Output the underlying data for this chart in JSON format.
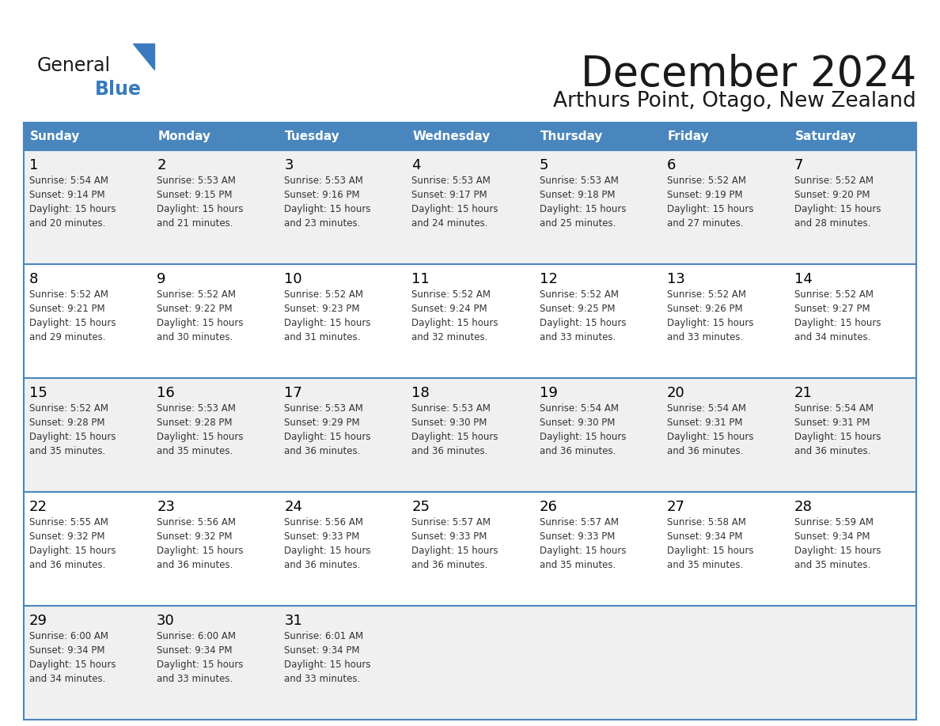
{
  "title": "December 2024",
  "subtitle": "Arthurs Point, Otago, New Zealand",
  "header_bg": "#4a86be",
  "header_text_color": "#ffffff",
  "cell_bg_odd": "#f0f0f0",
  "cell_bg_even": "#ffffff",
  "cell_bg_last": "#f0f0f0",
  "day_number_color": "#000000",
  "cell_text_color": "#333333",
  "border_color": "#4a86be",
  "border_color_row": "#4a86be",
  "days_of_week": [
    "Sunday",
    "Monday",
    "Tuesday",
    "Wednesday",
    "Thursday",
    "Friday",
    "Saturday"
  ],
  "weeks": [
    [
      {
        "day": 1,
        "sunrise": "5:54 AM",
        "sunset": "9:14 PM",
        "daylight_line1": "15 hours",
        "daylight_line2": "and 20 minutes."
      },
      {
        "day": 2,
        "sunrise": "5:53 AM",
        "sunset": "9:15 PM",
        "daylight_line1": "15 hours",
        "daylight_line2": "and 21 minutes."
      },
      {
        "day": 3,
        "sunrise": "5:53 AM",
        "sunset": "9:16 PM",
        "daylight_line1": "15 hours",
        "daylight_line2": "and 23 minutes."
      },
      {
        "day": 4,
        "sunrise": "5:53 AM",
        "sunset": "9:17 PM",
        "daylight_line1": "15 hours",
        "daylight_line2": "and 24 minutes."
      },
      {
        "day": 5,
        "sunrise": "5:53 AM",
        "sunset": "9:18 PM",
        "daylight_line1": "15 hours",
        "daylight_line2": "and 25 minutes."
      },
      {
        "day": 6,
        "sunrise": "5:52 AM",
        "sunset": "9:19 PM",
        "daylight_line1": "15 hours",
        "daylight_line2": "and 27 minutes."
      },
      {
        "day": 7,
        "sunrise": "5:52 AM",
        "sunset": "9:20 PM",
        "daylight_line1": "15 hours",
        "daylight_line2": "and 28 minutes."
      }
    ],
    [
      {
        "day": 8,
        "sunrise": "5:52 AM",
        "sunset": "9:21 PM",
        "daylight_line1": "15 hours",
        "daylight_line2": "and 29 minutes."
      },
      {
        "day": 9,
        "sunrise": "5:52 AM",
        "sunset": "9:22 PM",
        "daylight_line1": "15 hours",
        "daylight_line2": "and 30 minutes."
      },
      {
        "day": 10,
        "sunrise": "5:52 AM",
        "sunset": "9:23 PM",
        "daylight_line1": "15 hours",
        "daylight_line2": "and 31 minutes."
      },
      {
        "day": 11,
        "sunrise": "5:52 AM",
        "sunset": "9:24 PM",
        "daylight_line1": "15 hours",
        "daylight_line2": "and 32 minutes."
      },
      {
        "day": 12,
        "sunrise": "5:52 AM",
        "sunset": "9:25 PM",
        "daylight_line1": "15 hours",
        "daylight_line2": "and 33 minutes."
      },
      {
        "day": 13,
        "sunrise": "5:52 AM",
        "sunset": "9:26 PM",
        "daylight_line1": "15 hours",
        "daylight_line2": "and 33 minutes."
      },
      {
        "day": 14,
        "sunrise": "5:52 AM",
        "sunset": "9:27 PM",
        "daylight_line1": "15 hours",
        "daylight_line2": "and 34 minutes."
      }
    ],
    [
      {
        "day": 15,
        "sunrise": "5:52 AM",
        "sunset": "9:28 PM",
        "daylight_line1": "15 hours",
        "daylight_line2": "and 35 minutes."
      },
      {
        "day": 16,
        "sunrise": "5:53 AM",
        "sunset": "9:28 PM",
        "daylight_line1": "15 hours",
        "daylight_line2": "and 35 minutes."
      },
      {
        "day": 17,
        "sunrise": "5:53 AM",
        "sunset": "9:29 PM",
        "daylight_line1": "15 hours",
        "daylight_line2": "and 36 minutes."
      },
      {
        "day": 18,
        "sunrise": "5:53 AM",
        "sunset": "9:30 PM",
        "daylight_line1": "15 hours",
        "daylight_line2": "and 36 minutes."
      },
      {
        "day": 19,
        "sunrise": "5:54 AM",
        "sunset": "9:30 PM",
        "daylight_line1": "15 hours",
        "daylight_line2": "and 36 minutes."
      },
      {
        "day": 20,
        "sunrise": "5:54 AM",
        "sunset": "9:31 PM",
        "daylight_line1": "15 hours",
        "daylight_line2": "and 36 minutes."
      },
      {
        "day": 21,
        "sunrise": "5:54 AM",
        "sunset": "9:31 PM",
        "daylight_line1": "15 hours",
        "daylight_line2": "and 36 minutes."
      }
    ],
    [
      {
        "day": 22,
        "sunrise": "5:55 AM",
        "sunset": "9:32 PM",
        "daylight_line1": "15 hours",
        "daylight_line2": "and 36 minutes."
      },
      {
        "day": 23,
        "sunrise": "5:56 AM",
        "sunset": "9:32 PM",
        "daylight_line1": "15 hours",
        "daylight_line2": "and 36 minutes."
      },
      {
        "day": 24,
        "sunrise": "5:56 AM",
        "sunset": "9:33 PM",
        "daylight_line1": "15 hours",
        "daylight_line2": "and 36 minutes."
      },
      {
        "day": 25,
        "sunrise": "5:57 AM",
        "sunset": "9:33 PM",
        "daylight_line1": "15 hours",
        "daylight_line2": "and 36 minutes."
      },
      {
        "day": 26,
        "sunrise": "5:57 AM",
        "sunset": "9:33 PM",
        "daylight_line1": "15 hours",
        "daylight_line2": "and 35 minutes."
      },
      {
        "day": 27,
        "sunrise": "5:58 AM",
        "sunset": "9:34 PM",
        "daylight_line1": "15 hours",
        "daylight_line2": "and 35 minutes."
      },
      {
        "day": 28,
        "sunrise": "5:59 AM",
        "sunset": "9:34 PM",
        "daylight_line1": "15 hours",
        "daylight_line2": "and 35 minutes."
      }
    ],
    [
      {
        "day": 29,
        "sunrise": "6:00 AM",
        "sunset": "9:34 PM",
        "daylight_line1": "15 hours",
        "daylight_line2": "and 34 minutes."
      },
      {
        "day": 30,
        "sunrise": "6:00 AM",
        "sunset": "9:34 PM",
        "daylight_line1": "15 hours",
        "daylight_line2": "and 33 minutes."
      },
      {
        "day": 31,
        "sunrise": "6:01 AM",
        "sunset": "9:34 PM",
        "daylight_line1": "15 hours",
        "daylight_line2": "and 33 minutes."
      },
      null,
      null,
      null,
      null
    ]
  ],
  "logo_text_general": "General",
  "logo_text_blue": "Blue",
  "logo_color_general": "#1a1a1a",
  "logo_color_blue": "#3a7bbf",
  "logo_triangle_color": "#3a7bbf",
  "fig_width": 11.88,
  "fig_height": 9.18,
  "dpi": 100
}
